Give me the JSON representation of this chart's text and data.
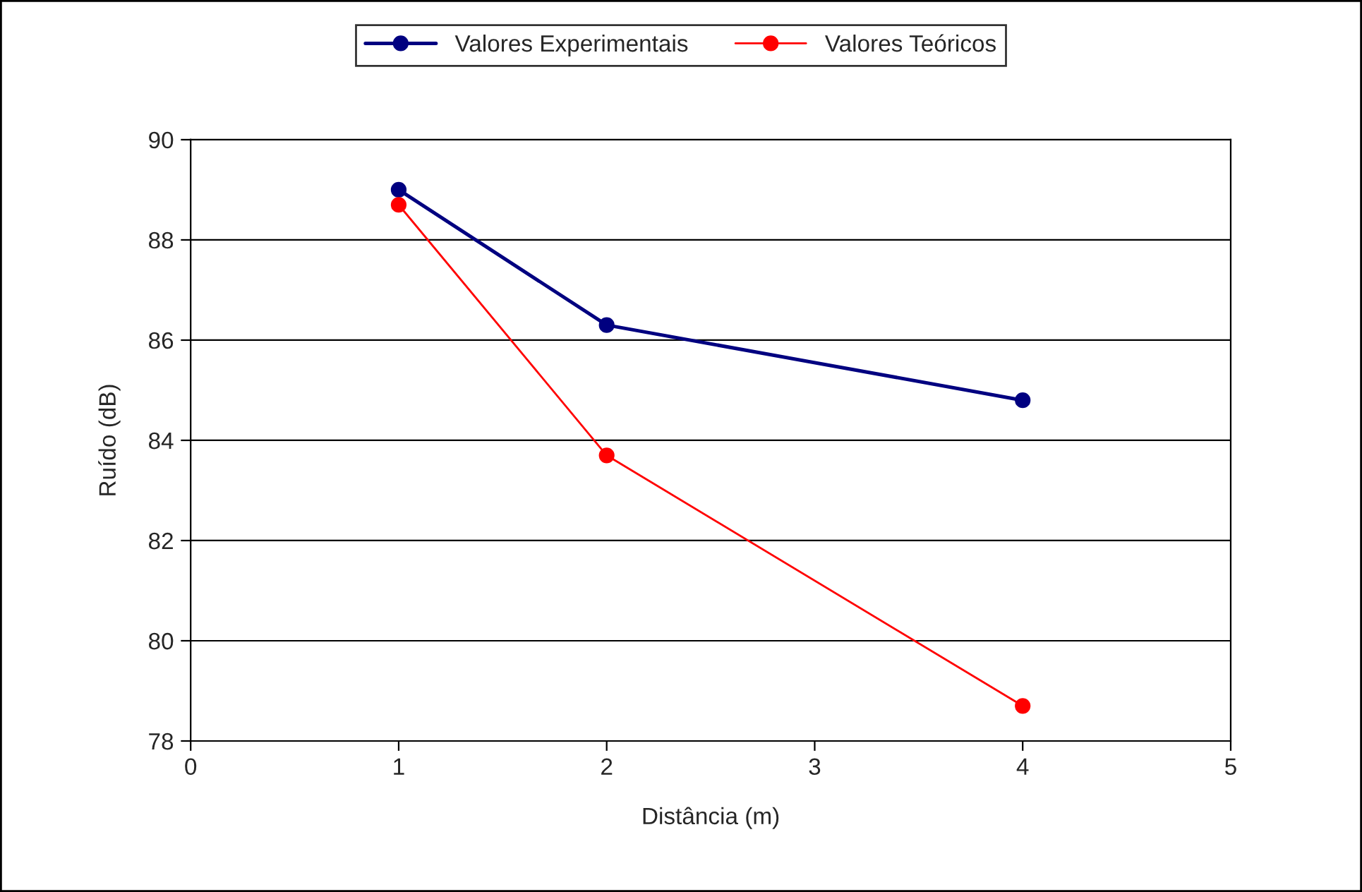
{
  "chart_data": {
    "type": "line",
    "xlabel": "Distância (m)",
    "ylabel": "Ruído (dB)",
    "x": [
      1,
      2,
      4
    ],
    "series": [
      {
        "name": "Valores Experimentais",
        "color": "#000080",
        "values": [
          89.0,
          86.3,
          84.8
        ]
      },
      {
        "name": "Valores Teóricos",
        "color": "#ff0000",
        "values": [
          88.7,
          83.7,
          78.7
        ]
      }
    ],
    "xlim": [
      0,
      5
    ],
    "xticks": [
      0,
      1,
      2,
      3,
      4,
      5
    ],
    "ylim": [
      78,
      90
    ],
    "yticks": [
      78,
      80,
      82,
      84,
      86,
      88,
      90
    ],
    "grid": "y",
    "legend": "top",
    "marker": "circle",
    "line_style": "solid"
  }
}
